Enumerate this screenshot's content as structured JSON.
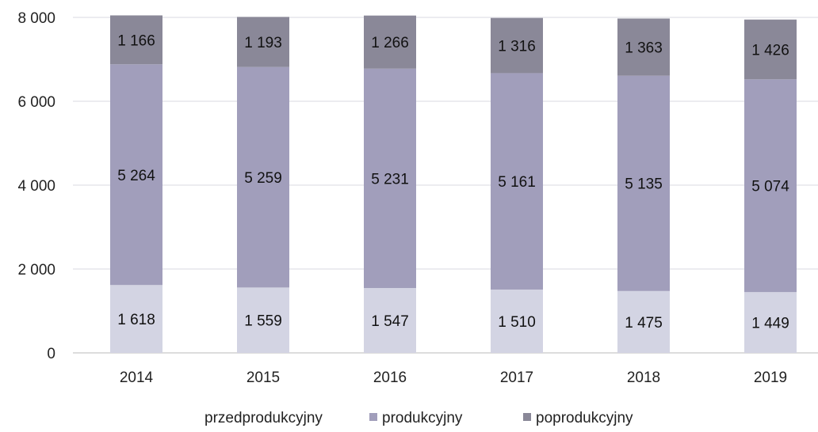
{
  "chart_data": {
    "type": "bar",
    "stacked": true,
    "title": "",
    "xlabel": "",
    "ylabel": "",
    "ylim": [
      0,
      8000
    ],
    "yticks": [
      0,
      2000,
      4000,
      6000,
      8000
    ],
    "ytick_labels": [
      "0",
      "2 000",
      "4 000",
      "6 000",
      "8 000"
    ],
    "grid": true,
    "legend_position": "bottom",
    "categories": [
      "2014",
      "2015",
      "2016",
      "2017",
      "2018",
      "2019"
    ],
    "series": [
      {
        "name": "przedprodukcyjny",
        "color": "#d3d4e3",
        "values": [
          1618,
          1559,
          1547,
          1510,
          1475,
          1449
        ],
        "labels": [
          "1 618",
          "1 559",
          "1 547",
          "1 510",
          "1 475",
          "1 449"
        ]
      },
      {
        "name": "produkcyjny",
        "color": "#a19ebb",
        "values": [
          5264,
          5259,
          5231,
          5161,
          5135,
          5074
        ],
        "labels": [
          "5 264",
          "5 259",
          "5 231",
          "5 161",
          "5 135",
          "5 074"
        ]
      },
      {
        "name": "poprodukcyjny",
        "color": "#8a8898",
        "values": [
          1166,
          1193,
          1266,
          1316,
          1363,
          1426
        ],
        "labels": [
          "1 166",
          "1 193",
          "1 266",
          "1 316",
          "1 363",
          "1 426"
        ]
      }
    ]
  }
}
